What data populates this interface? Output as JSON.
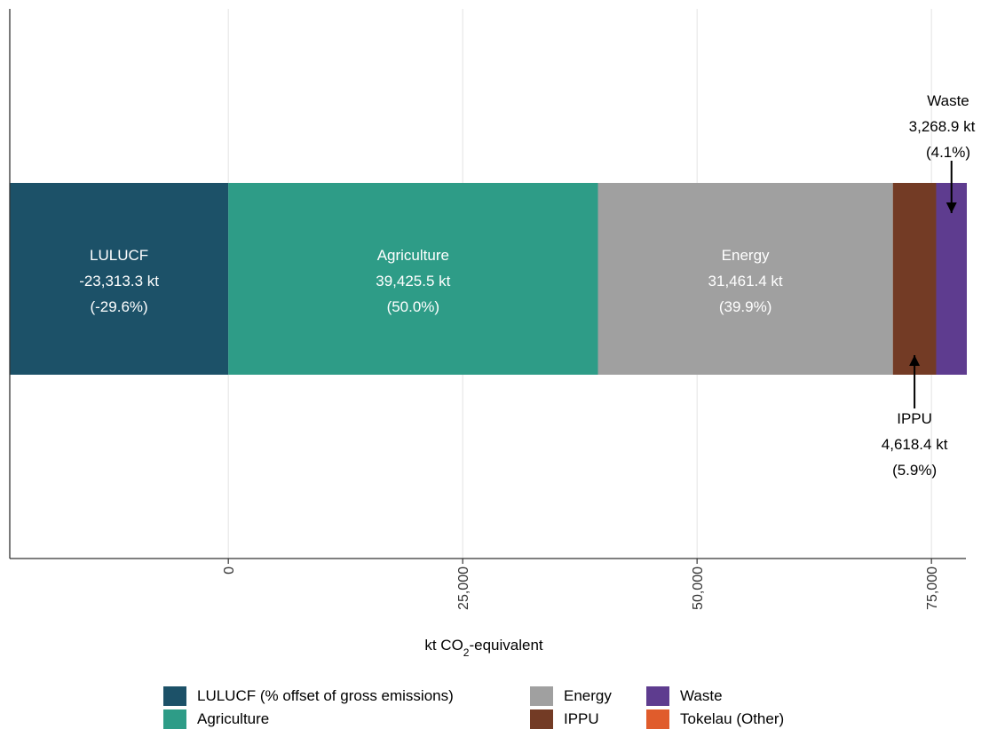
{
  "chart_data": {
    "type": "bar",
    "orientation": "horizontal-stacked",
    "xlabel": {
      "prefix": "kt CO",
      "subscript": "2",
      "suffix": "-equivalent"
    },
    "xlim": [
      -23313.3,
      78773.6
    ],
    "xticks": [
      0,
      25000,
      50000,
      75000
    ],
    "xtick_labels": [
      "0",
      "25,000",
      "50,000",
      "75,000"
    ],
    "grid": true,
    "legend_position": "bottom",
    "segments": [
      {
        "name": "LULUCF",
        "start": -23313.3,
        "end": 0,
        "value": -23313.3,
        "value_label": "-23,313.3 kt",
        "pct_label": "(-29.6%)",
        "color": "#1c5168",
        "label_style": "inside"
      },
      {
        "name": "Agriculture",
        "start": 0,
        "end": 39425.5,
        "value": 39425.5,
        "value_label": "39,425.5 kt",
        "pct_label": "(50.0%)",
        "color": "#2e9c87",
        "label_style": "inside"
      },
      {
        "name": "Energy",
        "start": 39425.5,
        "end": 70886.9,
        "value": 31461.4,
        "value_label": "31,461.4 kt",
        "pct_label": "(39.9%)",
        "color": "#a0a0a0",
        "label_style": "inside"
      },
      {
        "name": "IPPU",
        "start": 70886.9,
        "end": 75505.3,
        "value": 4618.4,
        "value_label": "4,618.4 kt",
        "pct_label": "(5.9%)",
        "color": "#733b25",
        "label_style": "below"
      },
      {
        "name": "Waste",
        "start": 75505.3,
        "end": 78774.2,
        "value": 3268.9,
        "value_label": "3,268.9 kt",
        "pct_label": "(4.1%)",
        "color": "#5e3c8f",
        "label_style": "above"
      }
    ],
    "legend": [
      {
        "label": "LULUCF (% offset of gross emissions)",
        "color": "#1c5168"
      },
      {
        "label": "Agriculture",
        "color": "#2e9c87"
      },
      {
        "label": "Energy",
        "color": "#a0a0a0"
      },
      {
        "label": "IPPU",
        "color": "#733b25"
      },
      {
        "label": "Waste",
        "color": "#5e3c8f"
      },
      {
        "label": "Tokelau (Other)",
        "color": "#e05c2c"
      }
    ]
  }
}
